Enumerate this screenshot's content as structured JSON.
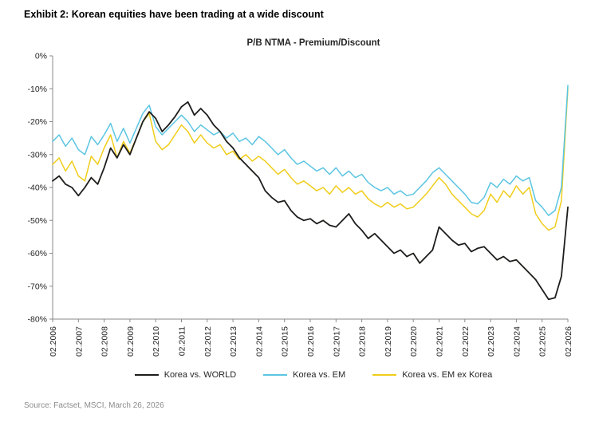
{
  "exhibit_title": "Exhibit 2: Korean equities have been trading at a wide discount",
  "source": "Source: Factset, MSCI, March 26, 2026",
  "chart_data": {
    "type": "line",
    "title": "P/B NTMA - Premium/Discount",
    "x_unit": "quarterly from Feb 2006 to Feb 2026",
    "x_tick_labels": [
      "02.2006",
      "02.2007",
      "02.2008",
      "02.2009",
      "02.2010",
      "02.2011",
      "02.2012",
      "02.2013",
      "02.2014",
      "02.2015",
      "02.2016",
      "02.2017",
      "02.2018",
      "02.2019",
      "02.2020",
      "02.2021",
      "02.2022",
      "02.2023",
      "02.2024",
      "02.2025",
      "02.2026"
    ],
    "ylim": [
      -80,
      0
    ],
    "y_ticks": [
      0,
      -10,
      -20,
      -30,
      -40,
      -50,
      -60,
      -70,
      -80
    ],
    "y_tick_labels": [
      "0%",
      "-10%",
      "-20%",
      "-30%",
      "-40%",
      "-50%",
      "-60%",
      "-70%",
      "-80%"
    ],
    "grid": false,
    "legend_position": "bottom",
    "series": [
      {
        "name": "Korea vs. WORLD",
        "color": "#1d1d1b",
        "values": [
          -38,
          -36.5,
          -39,
          -40,
          -42.5,
          -40,
          -37,
          -39,
          -34,
          -28,
          -31,
          -27,
          -30,
          -25,
          -20,
          -17,
          -19,
          -23,
          -21,
          -18.5,
          -15.5,
          -14,
          -18,
          -16,
          -18,
          -21,
          -23,
          -26,
          -28,
          -31,
          -33,
          -35,
          -37,
          -41,
          -43,
          -44.5,
          -44,
          -47,
          -49,
          -50,
          -49.5,
          -51,
          -50,
          -51.5,
          -52,
          -50,
          -48,
          -51,
          -53,
          -55.5,
          -54,
          -56,
          -58,
          -60,
          -59,
          -61,
          -60,
          -63,
          -61,
          -59,
          -52,
          -54,
          -56,
          -57.5,
          -57,
          -59.5,
          -58.5,
          -58,
          -60,
          -62,
          -61,
          -62.5,
          -62,
          -64,
          -66,
          -68,
          -71,
          -74,
          -73.5,
          -67,
          -46
        ]
      },
      {
        "name": "Korea vs. EM",
        "color": "#5bc5e2",
        "values": [
          -26,
          -24,
          -27.5,
          -25,
          -28.5,
          -30,
          -24.5,
          -27,
          -24,
          -20.5,
          -26,
          -22,
          -26.5,
          -22,
          -17.5,
          -15,
          -21.5,
          -24,
          -22,
          -20,
          -18,
          -20,
          -23,
          -21,
          -22.5,
          -24,
          -23,
          -25,
          -23.5,
          -26,
          -25,
          -27,
          -24.5,
          -26,
          -28,
          -30,
          -28.5,
          -31,
          -33,
          -32,
          -33.5,
          -35,
          -34,
          -36,
          -34,
          -36.5,
          -35,
          -37,
          -36,
          -38.5,
          -40,
          -41,
          -40,
          -42,
          -41,
          -42.5,
          -42,
          -40,
          -38,
          -35.5,
          -34,
          -36,
          -38,
          -40,
          -42,
          -44.5,
          -45,
          -43,
          -38.5,
          -40,
          -37.5,
          -39,
          -36.5,
          -38,
          -37,
          -44,
          -46,
          -48.5,
          -47,
          -40,
          -9
        ]
      },
      {
        "name": "Korea vs. EM ex Korea",
        "color": "#f0cd1a",
        "values": [
          -33,
          -31,
          -35,
          -32,
          -36.5,
          -38,
          -30.5,
          -33,
          -28,
          -24,
          -31,
          -26,
          -29.5,
          -25,
          -20,
          -17.5,
          -26,
          -28.5,
          -27,
          -24,
          -21,
          -23,
          -26.5,
          -24,
          -26.5,
          -28,
          -27,
          -30,
          -29,
          -31.5,
          -30,
          -32,
          -30.5,
          -32,
          -34,
          -36,
          -34.5,
          -37,
          -39,
          -38,
          -39.5,
          -41,
          -40,
          -42,
          -39.5,
          -41.5,
          -40,
          -42,
          -41,
          -43.5,
          -45,
          -46,
          -44.5,
          -46,
          -45,
          -46.5,
          -46,
          -44,
          -42,
          -39.5,
          -37,
          -39,
          -42,
          -44,
          -46,
          -48,
          -49,
          -47,
          -42,
          -44.5,
          -41,
          -43,
          -39.5,
          -42,
          -40,
          -48,
          -51,
          -53,
          -52,
          -44,
          -10
        ]
      }
    ]
  }
}
